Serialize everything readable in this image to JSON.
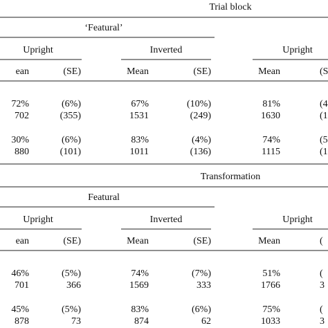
{
  "blocks": [
    {
      "title": "Trial block",
      "subtitle": "‘Featural’",
      "groups": [
        "Upright",
        "Inverted",
        "Upright"
      ],
      "header": [
        "ean",
        "(SE)",
        "Mean",
        "(SE)",
        "Mean",
        "(S"
      ],
      "rows": [
        [
          "72%",
          "(6%)",
          "67%",
          "(10%)",
          "81%",
          "(4"
        ],
        [
          "702",
          "(355)",
          "1531",
          "(249)",
          "1630",
          "(1"
        ],
        [
          "30%",
          "(6%)",
          "83%",
          "(4%)",
          "74%",
          "(5"
        ],
        [
          "880",
          "(101)",
          "1011",
          "(136)",
          "1115",
          "(1"
        ]
      ]
    },
    {
      "title": "Transformation",
      "subtitle": "Featural",
      "groups": [
        "Upright",
        "Inverted",
        "Upright"
      ],
      "header": [
        "ean",
        "(SE)",
        "Mean",
        "(SE)",
        "Mean",
        "("
      ],
      "rows": [
        [
          "46%",
          "(5%)",
          "74%",
          "(7%)",
          "51%",
          "("
        ],
        [
          "701",
          "366",
          "1569",
          "333",
          "1766",
          "3"
        ],
        [
          "45%",
          "(5%)",
          "83%",
          "(6%)",
          "75%",
          "("
        ],
        [
          "878",
          "73",
          "874",
          "62",
          "1033",
          "3"
        ]
      ]
    }
  ]
}
